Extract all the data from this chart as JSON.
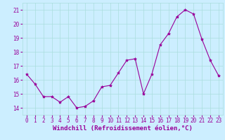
{
  "x": [
    0,
    1,
    2,
    3,
    4,
    5,
    6,
    7,
    8,
    9,
    10,
    11,
    12,
    13,
    14,
    15,
    16,
    17,
    18,
    19,
    20,
    21,
    22,
    23
  ],
  "y": [
    16.4,
    15.7,
    14.8,
    14.8,
    14.4,
    14.8,
    14.0,
    14.1,
    14.5,
    15.5,
    15.6,
    16.5,
    17.4,
    17.5,
    15.0,
    16.4,
    18.5,
    19.3,
    20.5,
    21.0,
    20.7,
    18.9,
    17.4,
    16.3
  ],
  "line_color": "#990099",
  "marker": "*",
  "marker_size": 3,
  "xlabel": "Windchill (Refroidissement éolien,°C)",
  "ylim": [
    13.5,
    21.5
  ],
  "xlim": [
    -0.5,
    23.5
  ],
  "yticks": [
    14,
    15,
    16,
    17,
    18,
    19,
    20,
    21
  ],
  "xticks": [
    0,
    1,
    2,
    3,
    4,
    5,
    6,
    7,
    8,
    9,
    10,
    11,
    12,
    13,
    14,
    15,
    16,
    17,
    18,
    19,
    20,
    21,
    22,
    23
  ],
  "grid_color": "#aadddd",
  "bg_color": "#cceeff",
  "xlabel_color": "#990099",
  "tick_color": "#990099",
  "tick_fontsize": 5.5,
  "xlabel_fontsize": 6.5
}
